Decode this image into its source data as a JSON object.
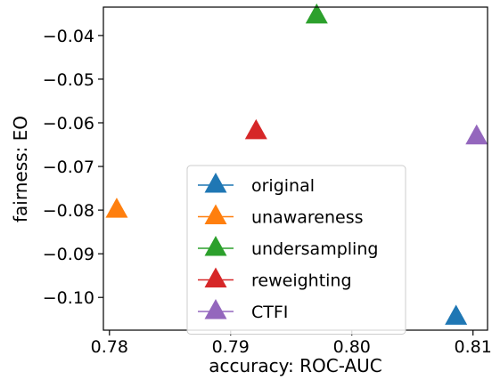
{
  "chart_data": {
    "type": "scatter",
    "title": "",
    "xlabel": "accuracy: ROC-AUC",
    "ylabel": "fairness: EO",
    "xlim": [
      0.7795,
      0.8112
    ],
    "ylim": [
      -0.1075,
      -0.0335
    ],
    "xticks": [
      {
        "value": 0.78,
        "label": "0.78"
      },
      {
        "value": 0.79,
        "label": "0.79"
      },
      {
        "value": 0.8,
        "label": "0.80"
      },
      {
        "value": 0.81,
        "label": "0.81"
      }
    ],
    "yticks": [
      {
        "value": -0.04,
        "label": "−0.04"
      },
      {
        "value": -0.05,
        "label": "−0.05"
      },
      {
        "value": -0.06,
        "label": "−0.06"
      },
      {
        "value": -0.07,
        "label": "−0.07"
      },
      {
        "value": -0.08,
        "label": "−0.08"
      },
      {
        "value": -0.09,
        "label": "−0.09"
      },
      {
        "value": -0.1,
        "label": "−0.10"
      }
    ],
    "grid": false,
    "legend_position": "lower-center",
    "marker": "triangle",
    "series": [
      {
        "name": "original",
        "color": "#1f77b4",
        "x": 0.8086,
        "y": -0.1045
      },
      {
        "name": "unawareness",
        "color": "#ff7f0e",
        "x": 0.7806,
        "y": -0.08
      },
      {
        "name": "undersampling",
        "color": "#2ca02c",
        "x": 0.7971,
        "y": -0.0355
      },
      {
        "name": "reweighting",
        "color": "#d62728",
        "x": 0.7921,
        "y": -0.062
      },
      {
        "name": "CTFI",
        "color": "#9467bd",
        "x": 0.8103,
        "y": -0.0632
      }
    ]
  }
}
